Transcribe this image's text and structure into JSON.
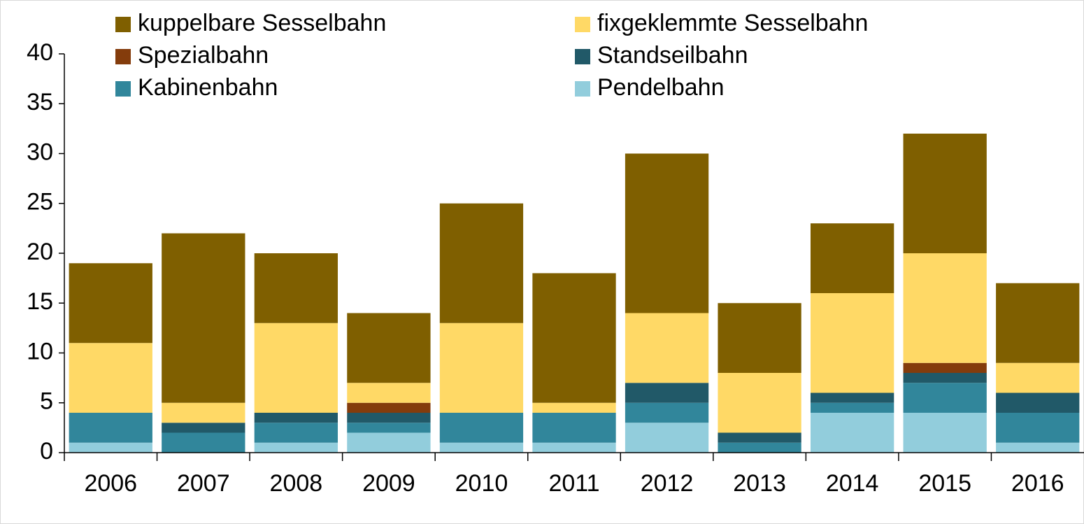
{
  "chart_data": {
    "type": "stacked_bar",
    "categories": [
      "2006",
      "2007",
      "2008",
      "2009",
      "2010",
      "2011",
      "2012",
      "2013",
      "2014",
      "2015",
      "2016"
    ],
    "series": [
      {
        "name": "kuppelbare Sesselbahn",
        "color": "#7f5f00",
        "values": [
          8,
          17,
          7,
          7,
          12,
          13,
          16,
          7,
          7,
          12,
          8
        ]
      },
      {
        "name": "fixgeklemmte Sesselbahn",
        "color": "#ffd966",
        "values": [
          7,
          2,
          9,
          2,
          9,
          1,
          7,
          6,
          10,
          11,
          3
        ]
      },
      {
        "name": "Spezialbahn",
        "color": "#843c0c",
        "values": [
          0,
          0,
          0,
          1,
          0,
          0,
          0,
          0,
          0,
          1,
          0
        ]
      },
      {
        "name": "Standseilbahn",
        "color": "#215968",
        "values": [
          0,
          1,
          1,
          1,
          0,
          0,
          2,
          1,
          1,
          1,
          2
        ]
      },
      {
        "name": "Kabinenbahn",
        "color": "#31869b",
        "values": [
          3,
          2,
          2,
          1,
          3,
          3,
          2,
          1,
          1,
          3,
          3
        ]
      },
      {
        "name": "Pendelbahn",
        "color": "#92cddc",
        "values": [
          1,
          0,
          1,
          2,
          1,
          1,
          3,
          0,
          4,
          4,
          1
        ]
      }
    ],
    "ylim": [
      0,
      40
    ],
    "yticks": [
      0,
      5,
      10,
      15,
      20,
      25,
      30,
      35,
      40
    ],
    "grid": false,
    "legend": "top"
  }
}
